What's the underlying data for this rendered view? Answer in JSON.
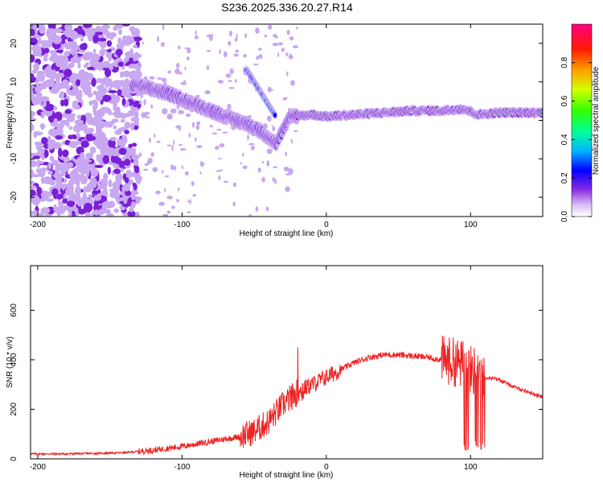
{
  "title": "S236.2025.336.20.27.R14",
  "chart_data": [
    {
      "type": "heatmap",
      "xlabel": "Height of straight line (km)",
      "ylabel": "Frequency (Hz)",
      "xlim": [
        -205,
        150
      ],
      "ylim": [
        -25,
        25
      ],
      "x_ticks": [
        -200,
        -100,
        0,
        100
      ],
      "y_ticks": [
        -20,
        -10,
        0,
        10,
        20
      ],
      "colorbar": {
        "label": "Normalized spectral amplitude",
        "range": [
          0,
          1
        ],
        "ticks": [
          0.0,
          0.2,
          0.4,
          0.6,
          0.8
        ],
        "colors": [
          "#ffffff",
          "#c8a8f0",
          "#7a1fd8",
          "#0000ff",
          "#00c8ff",
          "#00ff80",
          "#40ff00",
          "#ffff00",
          "#ff8000",
          "#ff0000",
          "#ff0080"
        ]
      },
      "ridge": {
        "description_points": [
          [
            -130,
            9
          ],
          [
            -110,
            7
          ],
          [
            -90,
            4
          ],
          [
            -70,
            1
          ],
          [
            -55,
            -1
          ],
          [
            -45,
            -3
          ],
          [
            -35,
            -6
          ],
          [
            -25,
            1
          ],
          [
            -10,
            1.5
          ],
          [
            0,
            1
          ],
          [
            20,
            1.5
          ],
          [
            40,
            2
          ],
          [
            60,
            2.5
          ],
          [
            80,
            2.5
          ],
          [
            95,
            3
          ],
          [
            105,
            1.5
          ],
          [
            120,
            2
          ],
          [
            150,
            2
          ]
        ],
        "secondary_branch": [
          [
            -55,
            13
          ],
          [
            -50,
            10
          ],
          [
            -45,
            7
          ],
          [
            -40,
            4
          ],
          [
            -35,
            1
          ]
        ]
      }
    },
    {
      "type": "line",
      "xlabel": "Height of straight line (km)",
      "ylabel": "SNR (10 * v/v)",
      "xlim": [
        -205,
        150
      ],
      "ylim": [
        0,
        780
      ],
      "x_ticks": [
        -200,
        -100,
        0,
        100
      ],
      "y_ticks": [
        0,
        200,
        400,
        600
      ],
      "series": [
        {
          "name": "SNR",
          "color": "#ee2222",
          "envelope": {
            "x": [
              -205,
              -180,
              -160,
              -140,
              -120,
              -100,
              -80,
              -60,
              -50,
              -40,
              -30,
              -20,
              -10,
              0,
              10,
              20,
              30,
              40,
              50,
              60,
              70,
              80,
              85,
              90,
              95,
              100,
              105,
              110,
              120,
              130,
              140,
              150
            ],
            "y": [
              20,
              20,
              22,
              25,
              35,
              50,
              70,
              90,
              110,
              150,
              220,
              270,
              300,
              330,
              360,
              390,
              410,
              420,
              420,
              415,
              410,
              400,
              395,
              390,
              380,
              360,
              350,
              330,
              320,
              290,
              270,
              250
            ]
          }
        }
      ]
    }
  ]
}
